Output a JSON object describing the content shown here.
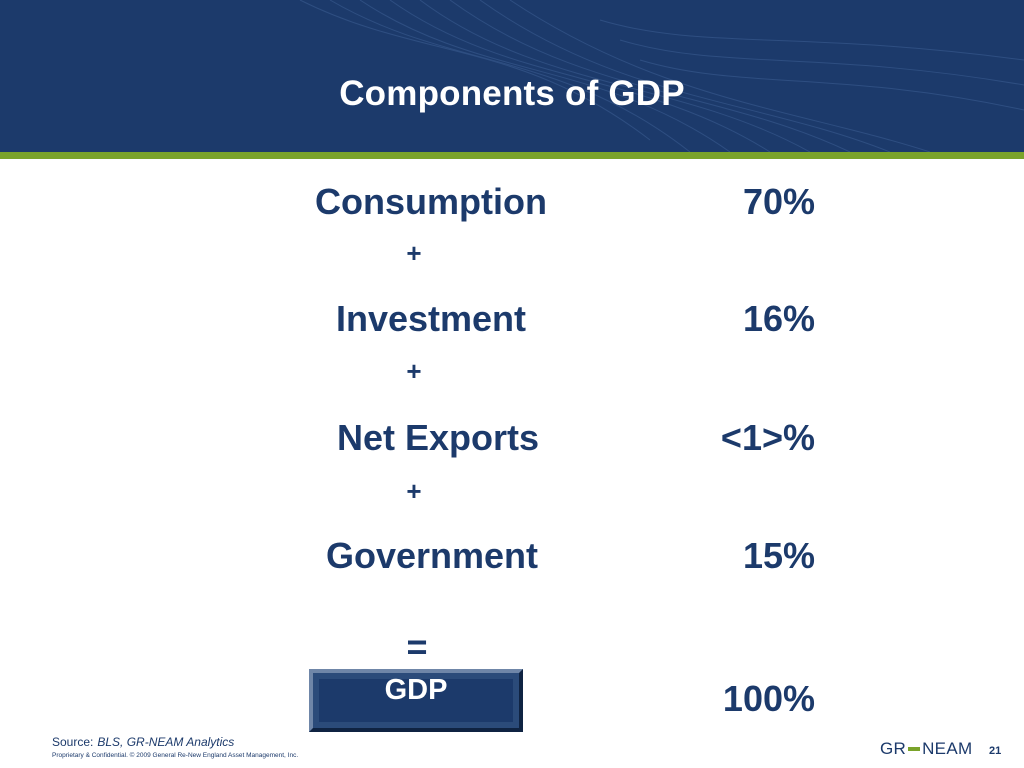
{
  "title": "Components of GDP",
  "components": [
    {
      "label": "Consumption",
      "value": "70%"
    },
    {
      "label": "Investment",
      "value": "16%"
    },
    {
      "label": "Net Exports",
      "value": "<1>%"
    },
    {
      "label": "Government",
      "value": "15%"
    }
  ],
  "operators": {
    "plus": "+",
    "equals": "="
  },
  "total": {
    "label": "GDP",
    "value": "100%"
  },
  "footer": {
    "source_label": "Source:",
    "source_value": "BLS, GR-NEAM Analytics",
    "copyright": "Proprietary & Confidential. © 2009 General Re-New England Asset Management, Inc.",
    "logo_left": "GR",
    "logo_right": "NEAM",
    "page_number": "21"
  },
  "colors": {
    "header": "#1c3a6b",
    "accent_green": "#7aa32a",
    "text": "#1c3a6b"
  }
}
